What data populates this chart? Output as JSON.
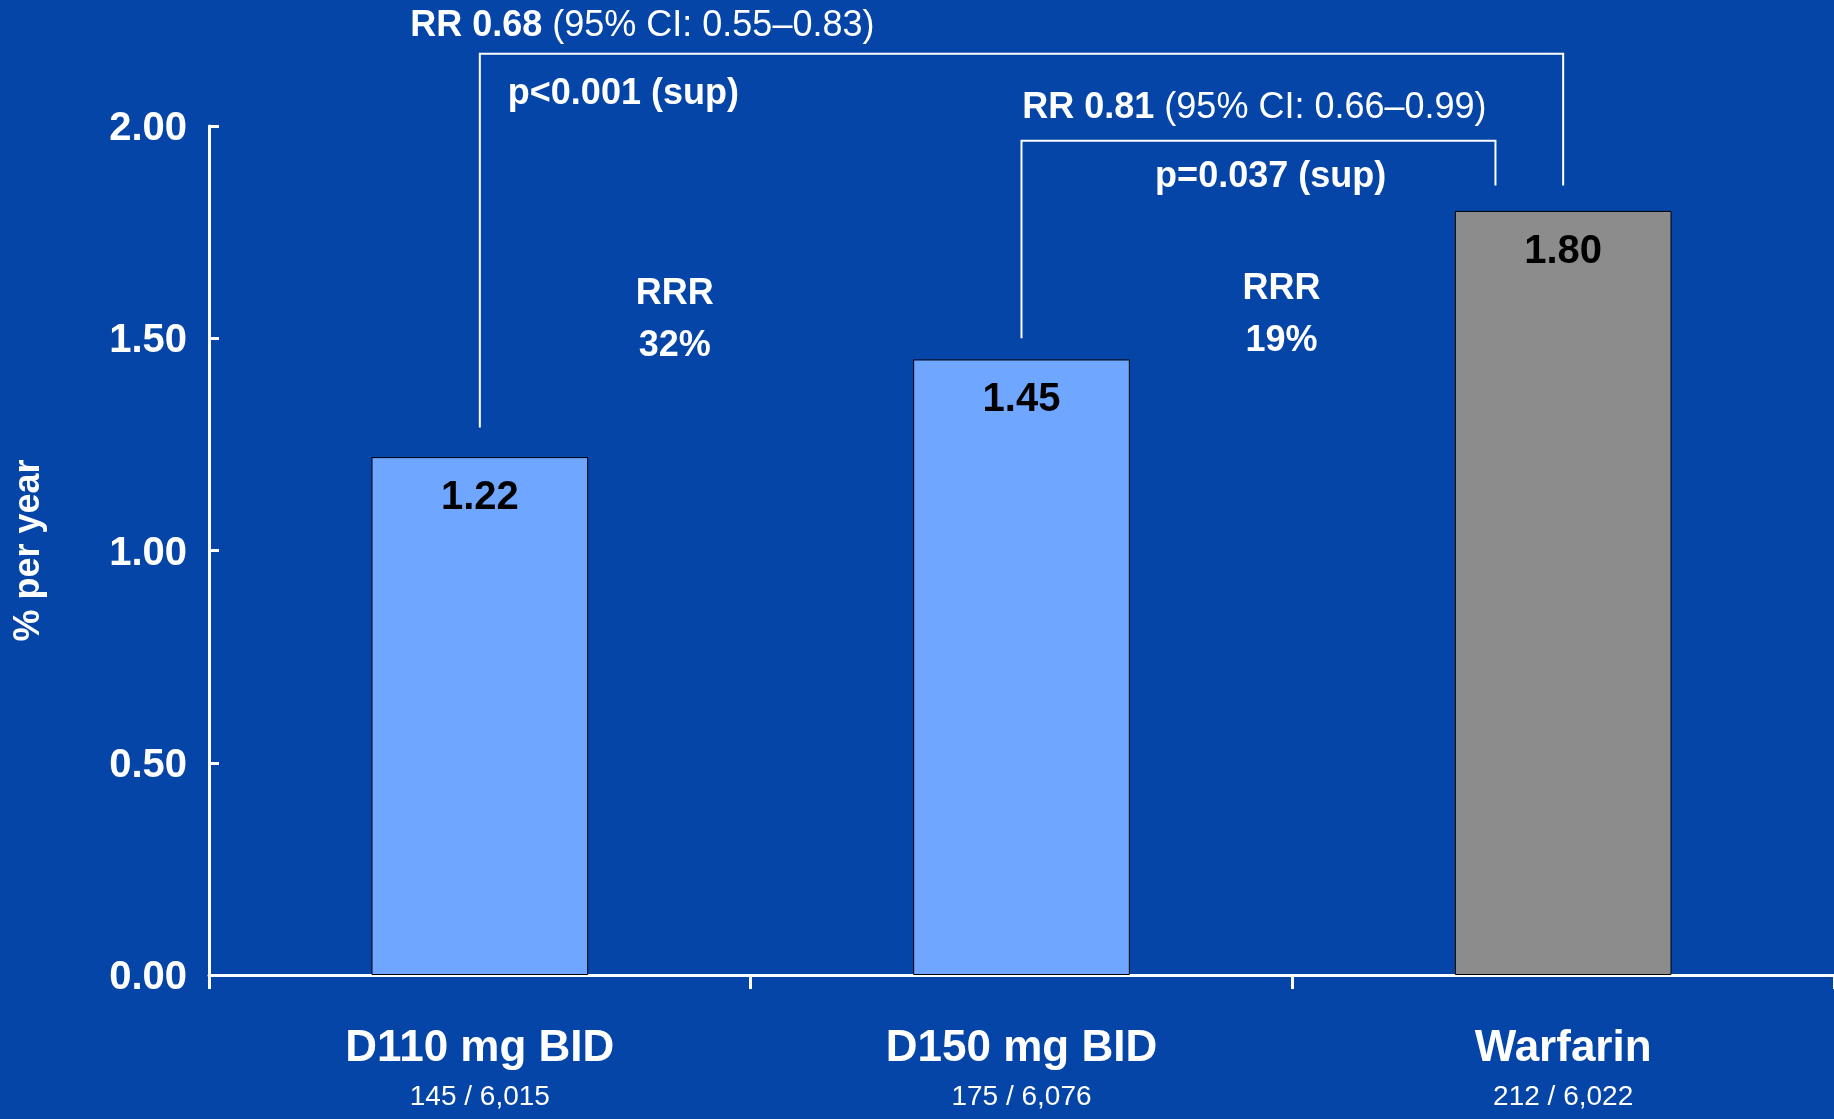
{
  "chart_data": {
    "type": "bar",
    "ylabel": "% per year",
    "categories": [
      "D110 mg BID\n145 / 6,015",
      "D150 mg BID\n175 / 6,076",
      "Warfarin\n212 / 6,022"
    ],
    "values": [
      1.22,
      1.45,
      1.8
    ],
    "colors": [
      "#6fa6ff",
      "#6fa6ff",
      "#8c8c8c"
    ],
    "value_labels": [
      "1.22",
      "1.45",
      "1.80"
    ],
    "ylim": [
      0,
      2
    ],
    "yticks": [
      {
        "value": 0,
        "label": "0.00"
      },
      {
        "value": 0.5,
        "label": "0.50"
      },
      {
        "value": 1,
        "label": "1.00"
      },
      {
        "value": 1.5,
        "label": "1.50"
      },
      {
        "value": 2,
        "label": "2.00"
      }
    ],
    "grid": false,
    "annotations": [
      "RR 0.68 (95% CI: 0.55–0.83)",
      "p<0.001 (sup)",
      "RR 0.81 (95% CI: 0.66–0.99)",
      "p=0.037 (sup)",
      "RRR\n32%",
      "RRR\n19%"
    ]
  }
}
